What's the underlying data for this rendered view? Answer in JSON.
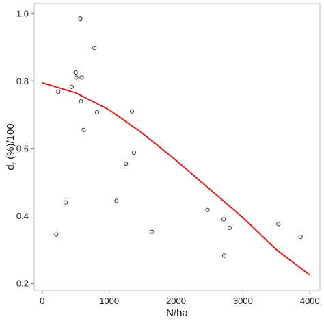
{
  "chart_data": {
    "type": "scatter",
    "xlabel": "N/ha",
    "ylabel_parts": {
      "main": "d",
      "sub": "r",
      "rest": " (%)/100"
    },
    "xlim": [
      -120,
      4150
    ],
    "ylim": [
      0.18,
      1.03
    ],
    "xticks": [
      {
        "value": 0,
        "label": "0"
      },
      {
        "value": 1000,
        "label": "1000"
      },
      {
        "value": 2000,
        "label": "2000"
      },
      {
        "value": 3000,
        "label": "3000"
      },
      {
        "value": 4000,
        "label": "4000"
      }
    ],
    "yticks": [
      {
        "value": 0.2,
        "label": "0.2"
      },
      {
        "value": 0.4,
        "label": "0.4"
      },
      {
        "value": 0.6,
        "label": "0.6"
      },
      {
        "value": 0.8,
        "label": "0.8"
      },
      {
        "value": 1.0,
        "label": "1.0"
      }
    ],
    "grid": false,
    "colors": {
      "fit": "#e31a1c",
      "points": "#333333",
      "frame": "#bdbdbd"
    },
    "points": [
      {
        "x": 210,
        "y": 0.345
      },
      {
        "x": 240,
        "y": 0.768
      },
      {
        "x": 350,
        "y": 0.44
      },
      {
        "x": 440,
        "y": 0.783
      },
      {
        "x": 500,
        "y": 0.825
      },
      {
        "x": 510,
        "y": 0.81
      },
      {
        "x": 570,
        "y": 0.985
      },
      {
        "x": 580,
        "y": 0.74
      },
      {
        "x": 590,
        "y": 0.81
      },
      {
        "x": 620,
        "y": 0.655
      },
      {
        "x": 780,
        "y": 0.898
      },
      {
        "x": 820,
        "y": 0.708
      },
      {
        "x": 1110,
        "y": 0.445
      },
      {
        "x": 1250,
        "y": 0.555
      },
      {
        "x": 1340,
        "y": 0.71
      },
      {
        "x": 1370,
        "y": 0.588
      },
      {
        "x": 1640,
        "y": 0.353
      },
      {
        "x": 2470,
        "y": 0.418
      },
      {
        "x": 2710,
        "y": 0.39
      },
      {
        "x": 2720,
        "y": 0.282
      },
      {
        "x": 2800,
        "y": 0.365
      },
      {
        "x": 3530,
        "y": 0.376
      },
      {
        "x": 3860,
        "y": 0.338
      }
    ],
    "fit_curve": [
      {
        "x": 0,
        "y": 0.795
      },
      {
        "x": 500,
        "y": 0.765
      },
      {
        "x": 1000,
        "y": 0.715
      },
      {
        "x": 1500,
        "y": 0.645
      },
      {
        "x": 2000,
        "y": 0.565
      },
      {
        "x": 2500,
        "y": 0.48
      },
      {
        "x": 3000,
        "y": 0.395
      },
      {
        "x": 3500,
        "y": 0.3
      },
      {
        "x": 4000,
        "y": 0.225
      }
    ]
  }
}
